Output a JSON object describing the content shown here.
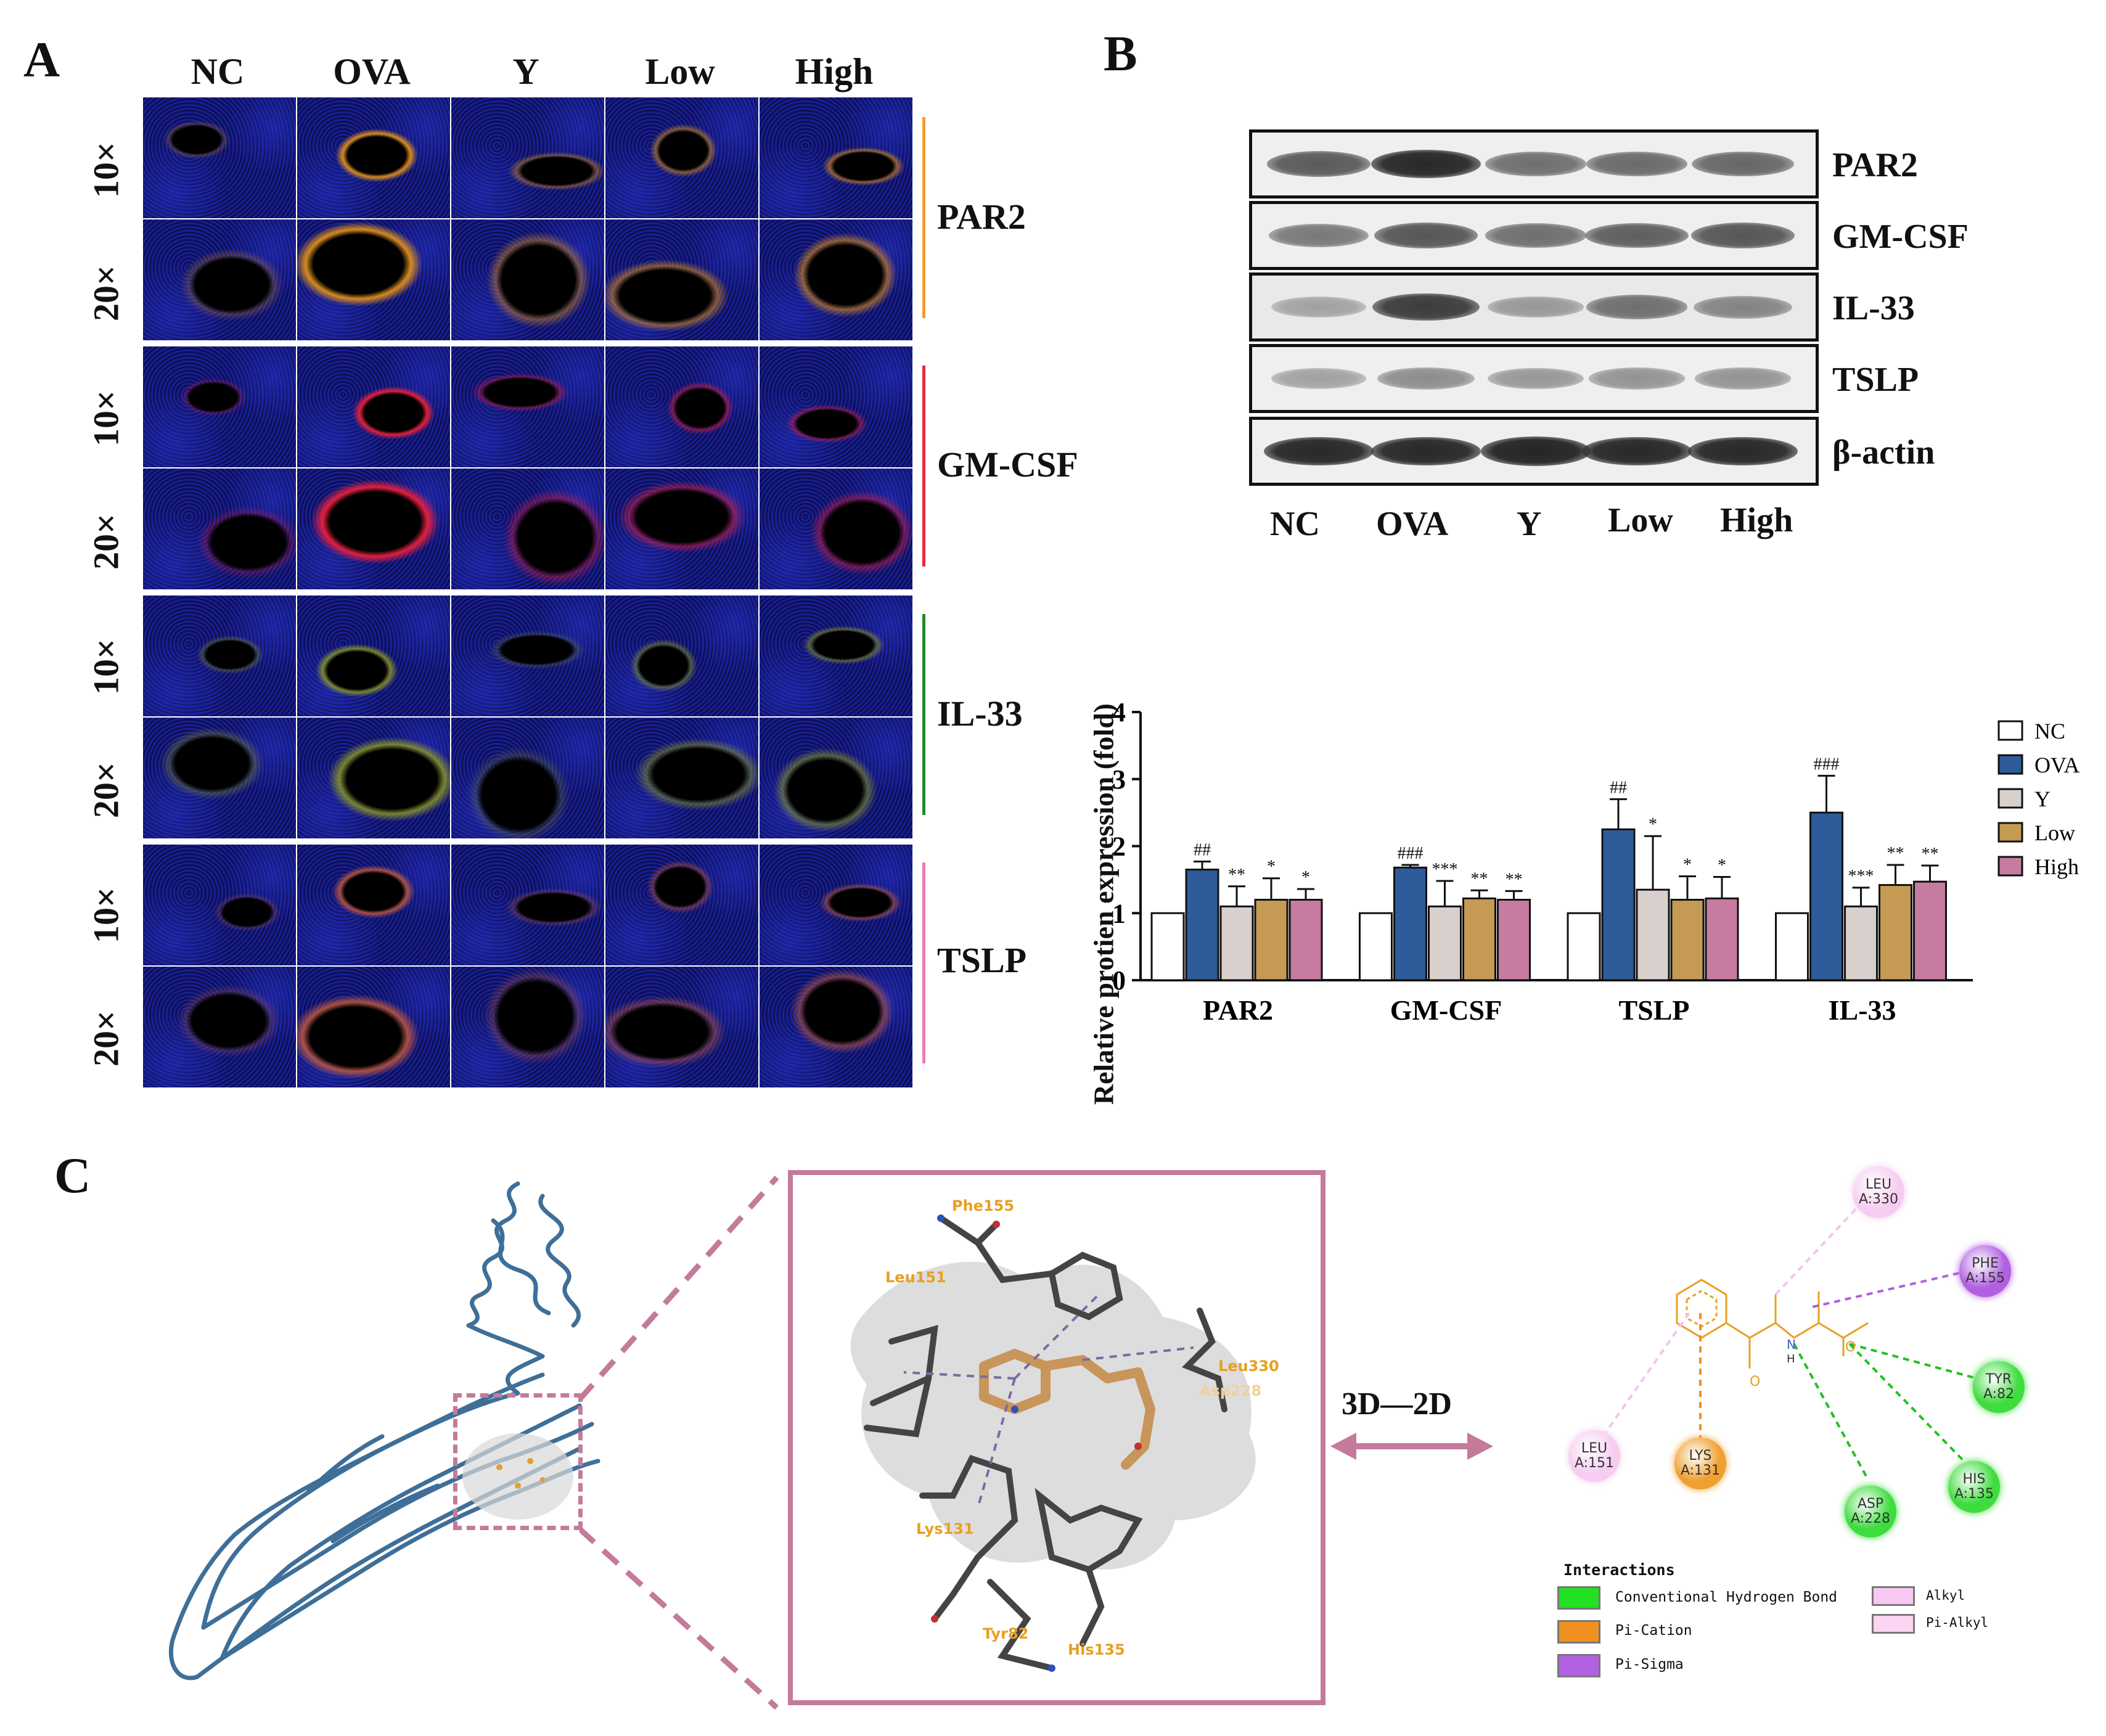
{
  "panels": {
    "a": "A",
    "b": "B",
    "c": "C"
  },
  "panel_a": {
    "columns": [
      "NC",
      "OVA",
      "Y",
      "Low",
      "High"
    ],
    "magnifications": [
      "10×",
      "20×"
    ],
    "markers": [
      {
        "name": "PAR2",
        "color": "#f39c2b",
        "stain": "#e0901c"
      },
      {
        "name": "GM-CSF",
        "color": "#e8283e",
        "stain": "#e02040"
      },
      {
        "name": "IL-33",
        "color": "#1f8a2b",
        "stain": "#9aa81e"
      },
      {
        "name": "TSLP",
        "color": "#f07ab0",
        "stain": "#c25a40"
      }
    ],
    "intensity": [
      [
        0.25,
        0.95,
        0.45,
        0.55,
        0.6
      ],
      [
        0.25,
        1.0,
        0.4,
        0.5,
        0.45
      ],
      [
        0.3,
        0.75,
        0.2,
        0.45,
        0.5
      ],
      [
        0.25,
        0.85,
        0.3,
        0.45,
        0.55
      ]
    ]
  },
  "panel_b": {
    "blot_labels": [
      "PAR2",
      "GM-CSF",
      "IL-33",
      "TSLP",
      "β-actin"
    ],
    "lanes": [
      "NC",
      "OVA",
      "Y",
      "Low",
      "High"
    ],
    "band_intensity": [
      [
        0.7,
        0.95,
        0.6,
        0.62,
        0.64
      ],
      [
        0.55,
        0.72,
        0.6,
        0.68,
        0.72
      ],
      [
        0.35,
        0.85,
        0.4,
        0.6,
        0.5
      ],
      [
        0.35,
        0.45,
        0.4,
        0.42,
        0.42
      ],
      [
        0.95,
        0.95,
        0.97,
        0.95,
        0.95
      ]
    ]
  },
  "chart_data": {
    "type": "bar",
    "title": "",
    "xlabel": "",
    "ylabel": "Relative protien expression (fold)",
    "ylim": [
      0,
      4
    ],
    "yticks": [
      0,
      1,
      2,
      3,
      4
    ],
    "categories": [
      "PAR2",
      "GM-CSF",
      "TSLP",
      "IL-33"
    ],
    "legend_position": "right",
    "series": [
      {
        "name": "NC",
        "color": "#ffffff",
        "values": [
          1.0,
          1.0,
          1.0,
          1.0
        ],
        "errors": [
          0,
          0,
          0,
          0
        ],
        "annot": [
          "",
          "",
          "",
          ""
        ]
      },
      {
        "name": "OVA",
        "color": "#2e5b9a",
        "values": [
          1.65,
          1.68,
          2.25,
          2.5
        ],
        "errors": [
          0.12,
          0.04,
          0.45,
          0.55
        ],
        "annot": [
          "##",
          "###",
          "##",
          "###"
        ]
      },
      {
        "name": "Y",
        "color": "#d8d0cc",
        "values": [
          1.1,
          1.1,
          1.35,
          1.1
        ],
        "errors": [
          0.3,
          0.38,
          0.8,
          0.28
        ],
        "annot": [
          "**",
          "***",
          "*",
          "***"
        ]
      },
      {
        "name": "Low",
        "color": "#c59a52",
        "values": [
          1.2,
          1.22,
          1.2,
          1.42
        ],
        "errors": [
          0.32,
          0.12,
          0.35,
          0.3
        ],
        "annot": [
          "*",
          "**",
          "*",
          "**"
        ]
      },
      {
        "name": "High",
        "color": "#c77ba0",
        "values": [
          1.2,
          1.2,
          1.22,
          1.47
        ],
        "errors": [
          0.16,
          0.13,
          0.32,
          0.24
        ],
        "annot": [
          "*",
          "**",
          "*",
          "**"
        ]
      }
    ]
  },
  "panel_c": {
    "arrow_label": "3D—2D",
    "residues_3d": [
      "Phe155",
      "Leu151",
      "Leu330",
      "Asp228",
      "Lys131",
      "Tyr82",
      "His135"
    ],
    "nodes": [
      {
        "id": "leu330",
        "line1": "LEU",
        "line2": "A:330",
        "color": "#f6cdf0"
      },
      {
        "id": "phe155",
        "line1": "PHE",
        "line2": "A:155",
        "color": "#b060e0"
      },
      {
        "id": "tyr82",
        "line1": "TYR",
        "line2": "A:82",
        "color": "#3fdc3f"
      },
      {
        "id": "his135",
        "line1": "HIS",
        "line2": "A:135",
        "color": "#3fdc3f"
      },
      {
        "id": "asp228",
        "line1": "ASP",
        "line2": "A:228",
        "color": "#3fdc3f"
      },
      {
        "id": "lys131",
        "line1": "LYS",
        "line2": "A:131",
        "color": "#f0a030"
      },
      {
        "id": "leu151",
        "line1": "LEU",
        "line2": "A:151",
        "color": "#f6cdf0"
      }
    ],
    "atom_labels": [
      "O",
      "O",
      "N",
      "H"
    ],
    "interactions_title": "Interactions",
    "interactions": [
      {
        "label": "Conventional Hydrogen Bond",
        "color": "#22e022"
      },
      {
        "label": "Pi-Cation",
        "color": "#f09020"
      },
      {
        "label": "Pi-Sigma",
        "color": "#b060e0"
      },
      {
        "label": "Alkyl",
        "color": "#f8c8f0"
      },
      {
        "label": "Pi-Alkyl",
        "color": "#fbd6f2"
      }
    ]
  }
}
